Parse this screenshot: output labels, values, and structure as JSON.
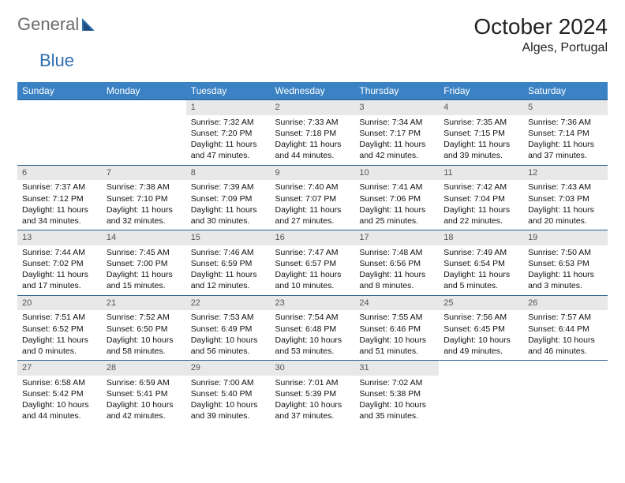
{
  "logo": {
    "word1": "General",
    "word2": "Blue"
  },
  "title": "October 2024",
  "location": "Alges, Portugal",
  "colors": {
    "header_bg": "#3b82c4",
    "header_text": "#ffffff",
    "daynum_bg": "#e8e8e8",
    "daynum_text": "#555555",
    "border": "#2c5f8d",
    "logo_grey": "#6b6b6b",
    "logo_blue": "#2f6fb0",
    "body_text": "#111111",
    "page_bg": "#ffffff"
  },
  "weekdays": [
    "Sunday",
    "Monday",
    "Tuesday",
    "Wednesday",
    "Thursday",
    "Friday",
    "Saturday"
  ],
  "weeks": [
    [
      null,
      null,
      {
        "n": "1",
        "sr": "Sunrise: 7:32 AM",
        "ss": "Sunset: 7:20 PM",
        "d1": "Daylight: 11 hours",
        "d2": "and 47 minutes."
      },
      {
        "n": "2",
        "sr": "Sunrise: 7:33 AM",
        "ss": "Sunset: 7:18 PM",
        "d1": "Daylight: 11 hours",
        "d2": "and 44 minutes."
      },
      {
        "n": "3",
        "sr": "Sunrise: 7:34 AM",
        "ss": "Sunset: 7:17 PM",
        "d1": "Daylight: 11 hours",
        "d2": "and 42 minutes."
      },
      {
        "n": "4",
        "sr": "Sunrise: 7:35 AM",
        "ss": "Sunset: 7:15 PM",
        "d1": "Daylight: 11 hours",
        "d2": "and 39 minutes."
      },
      {
        "n": "5",
        "sr": "Sunrise: 7:36 AM",
        "ss": "Sunset: 7:14 PM",
        "d1": "Daylight: 11 hours",
        "d2": "and 37 minutes."
      }
    ],
    [
      {
        "n": "6",
        "sr": "Sunrise: 7:37 AM",
        "ss": "Sunset: 7:12 PM",
        "d1": "Daylight: 11 hours",
        "d2": "and 34 minutes."
      },
      {
        "n": "7",
        "sr": "Sunrise: 7:38 AM",
        "ss": "Sunset: 7:10 PM",
        "d1": "Daylight: 11 hours",
        "d2": "and 32 minutes."
      },
      {
        "n": "8",
        "sr": "Sunrise: 7:39 AM",
        "ss": "Sunset: 7:09 PM",
        "d1": "Daylight: 11 hours",
        "d2": "and 30 minutes."
      },
      {
        "n": "9",
        "sr": "Sunrise: 7:40 AM",
        "ss": "Sunset: 7:07 PM",
        "d1": "Daylight: 11 hours",
        "d2": "and 27 minutes."
      },
      {
        "n": "10",
        "sr": "Sunrise: 7:41 AM",
        "ss": "Sunset: 7:06 PM",
        "d1": "Daylight: 11 hours",
        "d2": "and 25 minutes."
      },
      {
        "n": "11",
        "sr": "Sunrise: 7:42 AM",
        "ss": "Sunset: 7:04 PM",
        "d1": "Daylight: 11 hours",
        "d2": "and 22 minutes."
      },
      {
        "n": "12",
        "sr": "Sunrise: 7:43 AM",
        "ss": "Sunset: 7:03 PM",
        "d1": "Daylight: 11 hours",
        "d2": "and 20 minutes."
      }
    ],
    [
      {
        "n": "13",
        "sr": "Sunrise: 7:44 AM",
        "ss": "Sunset: 7:02 PM",
        "d1": "Daylight: 11 hours",
        "d2": "and 17 minutes."
      },
      {
        "n": "14",
        "sr": "Sunrise: 7:45 AM",
        "ss": "Sunset: 7:00 PM",
        "d1": "Daylight: 11 hours",
        "d2": "and 15 minutes."
      },
      {
        "n": "15",
        "sr": "Sunrise: 7:46 AM",
        "ss": "Sunset: 6:59 PM",
        "d1": "Daylight: 11 hours",
        "d2": "and 12 minutes."
      },
      {
        "n": "16",
        "sr": "Sunrise: 7:47 AM",
        "ss": "Sunset: 6:57 PM",
        "d1": "Daylight: 11 hours",
        "d2": "and 10 minutes."
      },
      {
        "n": "17",
        "sr": "Sunrise: 7:48 AM",
        "ss": "Sunset: 6:56 PM",
        "d1": "Daylight: 11 hours",
        "d2": "and 8 minutes."
      },
      {
        "n": "18",
        "sr": "Sunrise: 7:49 AM",
        "ss": "Sunset: 6:54 PM",
        "d1": "Daylight: 11 hours",
        "d2": "and 5 minutes."
      },
      {
        "n": "19",
        "sr": "Sunrise: 7:50 AM",
        "ss": "Sunset: 6:53 PM",
        "d1": "Daylight: 11 hours",
        "d2": "and 3 minutes."
      }
    ],
    [
      {
        "n": "20",
        "sr": "Sunrise: 7:51 AM",
        "ss": "Sunset: 6:52 PM",
        "d1": "Daylight: 11 hours",
        "d2": "and 0 minutes."
      },
      {
        "n": "21",
        "sr": "Sunrise: 7:52 AM",
        "ss": "Sunset: 6:50 PM",
        "d1": "Daylight: 10 hours",
        "d2": "and 58 minutes."
      },
      {
        "n": "22",
        "sr": "Sunrise: 7:53 AM",
        "ss": "Sunset: 6:49 PM",
        "d1": "Daylight: 10 hours",
        "d2": "and 56 minutes."
      },
      {
        "n": "23",
        "sr": "Sunrise: 7:54 AM",
        "ss": "Sunset: 6:48 PM",
        "d1": "Daylight: 10 hours",
        "d2": "and 53 minutes."
      },
      {
        "n": "24",
        "sr": "Sunrise: 7:55 AM",
        "ss": "Sunset: 6:46 PM",
        "d1": "Daylight: 10 hours",
        "d2": "and 51 minutes."
      },
      {
        "n": "25",
        "sr": "Sunrise: 7:56 AM",
        "ss": "Sunset: 6:45 PM",
        "d1": "Daylight: 10 hours",
        "d2": "and 49 minutes."
      },
      {
        "n": "26",
        "sr": "Sunrise: 7:57 AM",
        "ss": "Sunset: 6:44 PM",
        "d1": "Daylight: 10 hours",
        "d2": "and 46 minutes."
      }
    ],
    [
      {
        "n": "27",
        "sr": "Sunrise: 6:58 AM",
        "ss": "Sunset: 5:42 PM",
        "d1": "Daylight: 10 hours",
        "d2": "and 44 minutes."
      },
      {
        "n": "28",
        "sr": "Sunrise: 6:59 AM",
        "ss": "Sunset: 5:41 PM",
        "d1": "Daylight: 10 hours",
        "d2": "and 42 minutes."
      },
      {
        "n": "29",
        "sr": "Sunrise: 7:00 AM",
        "ss": "Sunset: 5:40 PM",
        "d1": "Daylight: 10 hours",
        "d2": "and 39 minutes."
      },
      {
        "n": "30",
        "sr": "Sunrise: 7:01 AM",
        "ss": "Sunset: 5:39 PM",
        "d1": "Daylight: 10 hours",
        "d2": "and 37 minutes."
      },
      {
        "n": "31",
        "sr": "Sunrise: 7:02 AM",
        "ss": "Sunset: 5:38 PM",
        "d1": "Daylight: 10 hours",
        "d2": "and 35 minutes."
      },
      null,
      null
    ]
  ]
}
